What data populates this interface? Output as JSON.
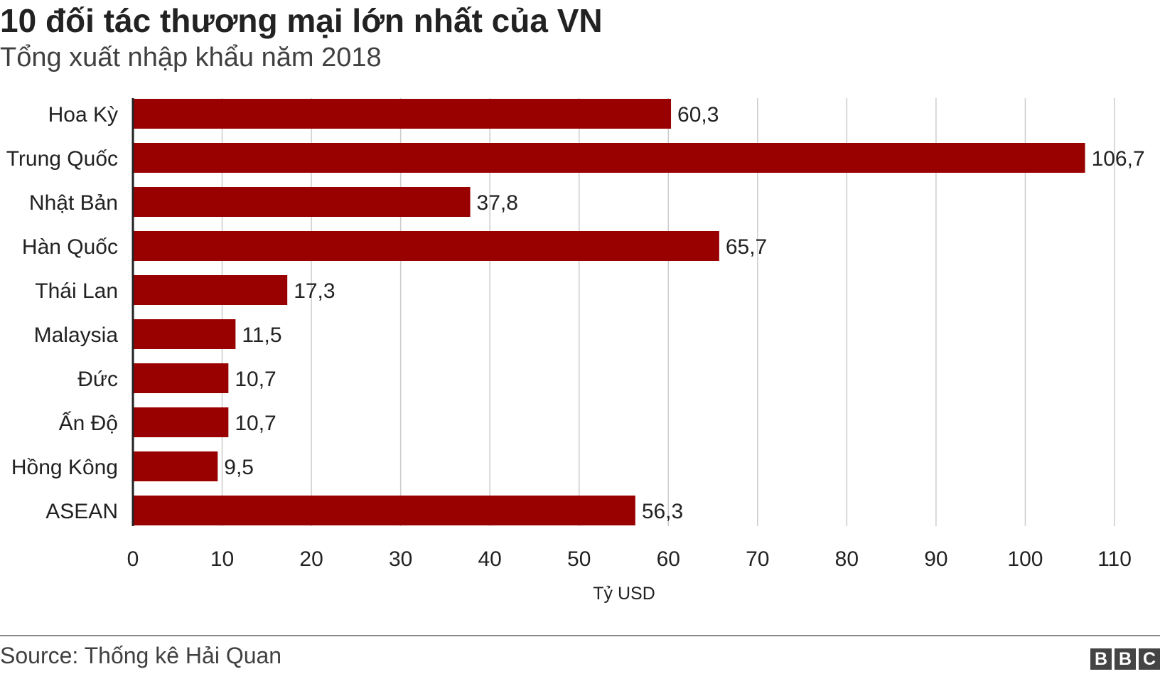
{
  "title": "10 đối tác thương mại lớn nhất của VN",
  "subtitle": "Tổng xuất nhập khẩu năm 2018",
  "source": "Source: Thống kê Hải Quan",
  "logo_letters": [
    "B",
    "B",
    "C"
  ],
  "chart_data": {
    "type": "bar",
    "orientation": "horizontal",
    "categories": [
      "Hoa Kỳ",
      "Trung Quốc",
      "Nhật Bản",
      "Hàn Quốc",
      "Thái Lan",
      "Malaysia",
      "Đức",
      "Ấn Độ",
      "Hồng Kông",
      "ASEAN"
    ],
    "values": [
      60.3,
      106.7,
      37.8,
      65.7,
      17.3,
      11.5,
      10.7,
      10.7,
      9.5,
      56.3
    ],
    "value_labels": [
      "60,3",
      "106,7",
      "37,8",
      "65,7",
      "17,3",
      "11,5",
      "10,7",
      "10,7",
      "9,5",
      "56,3"
    ],
    "xlabel": "Tỷ USD",
    "xlim": [
      0,
      110
    ],
    "xticks": [
      0,
      10,
      20,
      30,
      40,
      50,
      60,
      70,
      80,
      90,
      100,
      110
    ],
    "grid": true,
    "bar_color": "#990000",
    "grid_color": "#cccccc",
    "axis_color": "#222222"
  }
}
